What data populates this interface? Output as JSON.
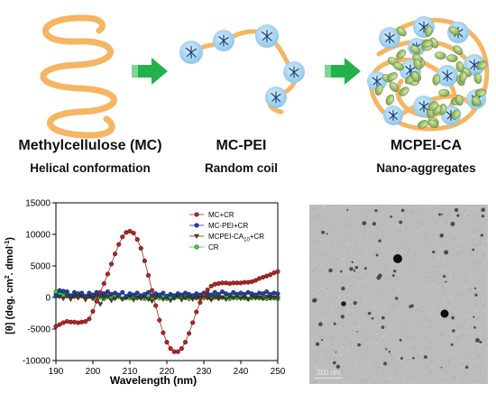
{
  "schematic": {
    "stages": [
      {
        "name": "Methylcellulose (MC)",
        "desc": "Helical conformation"
      },
      {
        "name": "MC-PEI",
        "desc": "Random coil"
      },
      {
        "name": "MCPEI-CA",
        "desc": "Nano-aggregates"
      }
    ],
    "colors": {
      "backbone": "#f5b562",
      "arrow": "#22b14c",
      "pei": "#a9d6f0",
      "ca": "#9bc06a"
    }
  },
  "chart_data": {
    "type": "line",
    "xlabel": "Wavelength (nm)",
    "ylabel_parts": [
      "[θ] (deg. cm",
      "2",
      ". dmol",
      "-1",
      ")"
    ],
    "xlim": [
      190,
      250
    ],
    "ylim": [
      -10000,
      15000
    ],
    "xticks": [
      190,
      200,
      210,
      220,
      230,
      240,
      250
    ],
    "yticks": [
      -10000,
      -5000,
      0,
      5000,
      10000,
      15000
    ],
    "grid": false,
    "legend_position": "top-right",
    "series": [
      {
        "name": "MC+CR",
        "color": "#b22222",
        "marker": "circle",
        "points": [
          [
            190,
            -4600
          ],
          [
            191,
            -4300
          ],
          [
            192,
            -4000
          ],
          [
            193,
            -3800
          ],
          [
            194,
            -3900
          ],
          [
            195,
            -3900
          ],
          [
            196,
            -4000
          ],
          [
            197,
            -3900
          ],
          [
            198,
            -3800
          ],
          [
            199,
            -3400
          ],
          [
            200,
            -2200
          ],
          [
            201,
            -600
          ],
          [
            202,
            800
          ],
          [
            203,
            2200
          ],
          [
            204,
            3700
          ],
          [
            205,
            5300
          ],
          [
            206,
            6900
          ],
          [
            207,
            8400
          ],
          [
            208,
            9600
          ],
          [
            209,
            10300
          ],
          [
            210,
            10500
          ],
          [
            211,
            10200
          ],
          [
            212,
            9200
          ],
          [
            213,
            7800
          ],
          [
            214,
            5800
          ],
          [
            215,
            3500
          ],
          [
            216,
            1100
          ],
          [
            217,
            -1300
          ],
          [
            218,
            -3600
          ],
          [
            219,
            -5600
          ],
          [
            220,
            -7100
          ],
          [
            221,
            -8100
          ],
          [
            222,
            -8600
          ],
          [
            223,
            -8600
          ],
          [
            224,
            -8100
          ],
          [
            225,
            -7100
          ],
          [
            226,
            -5700
          ],
          [
            227,
            -4000
          ],
          [
            228,
            -2300
          ],
          [
            229,
            -800
          ],
          [
            230,
            400
          ],
          [
            231,
            1200
          ],
          [
            232,
            1800
          ],
          [
            233,
            2100
          ],
          [
            234,
            2200
          ],
          [
            235,
            2300
          ],
          [
            236,
            2300
          ],
          [
            237,
            2200
          ],
          [
            238,
            2300
          ],
          [
            239,
            2300
          ],
          [
            240,
            2300
          ],
          [
            241,
            2400
          ],
          [
            242,
            2400
          ],
          [
            243,
            2500
          ],
          [
            244,
            2700
          ],
          [
            245,
            3000
          ],
          [
            246,
            3200
          ],
          [
            247,
            3400
          ],
          [
            248,
            3600
          ],
          [
            249,
            3900
          ],
          [
            250,
            4100
          ]
        ]
      },
      {
        "name": "MC-PEI+CR",
        "color": "#1f3fa5",
        "marker": "circle",
        "points": [
          [
            190,
            200
          ],
          [
            191,
            1100
          ],
          [
            192,
            1000
          ],
          [
            193,
            900
          ],
          [
            194,
            300
          ],
          [
            195,
            800
          ],
          [
            196,
            600
          ],
          [
            197,
            700
          ],
          [
            198,
            200
          ],
          [
            199,
            700
          ],
          [
            200,
            400
          ],
          [
            201,
            800
          ],
          [
            202,
            300
          ],
          [
            203,
            600
          ],
          [
            204,
            900
          ],
          [
            205,
            500
          ],
          [
            206,
            700
          ],
          [
            207,
            400
          ],
          [
            208,
            800
          ],
          [
            209,
            200
          ],
          [
            210,
            600
          ],
          [
            211,
            400
          ],
          [
            212,
            700
          ],
          [
            213,
            300
          ],
          [
            214,
            500
          ],
          [
            215,
            800
          ],
          [
            216,
            300
          ],
          [
            217,
            600
          ],
          [
            218,
            400
          ],
          [
            219,
            700
          ],
          [
            220,
            200
          ],
          [
            221,
            500
          ],
          [
            222,
            300
          ],
          [
            223,
            600
          ],
          [
            224,
            400
          ],
          [
            225,
            700
          ],
          [
            226,
            500
          ],
          [
            227,
            300
          ],
          [
            228,
            600
          ],
          [
            229,
            400
          ],
          [
            230,
            700
          ],
          [
            231,
            600
          ],
          [
            232,
            400
          ],
          [
            233,
            800
          ],
          [
            234,
            500
          ],
          [
            235,
            900
          ],
          [
            236,
            600
          ],
          [
            237,
            400
          ],
          [
            238,
            800
          ],
          [
            239,
            500
          ],
          [
            240,
            700
          ],
          [
            241,
            500
          ],
          [
            242,
            800
          ],
          [
            243,
            600
          ],
          [
            244,
            400
          ],
          [
            245,
            700
          ],
          [
            246,
            600
          ],
          [
            247,
            900
          ],
          [
            248,
            500
          ],
          [
            249,
            700
          ],
          [
            250,
            600
          ]
        ]
      },
      {
        "name": "MCPEI-CA10+CR",
        "color": "#5a3a1a",
        "marker": "triangle-down",
        "points": [
          [
            190,
            300
          ],
          [
            191,
            100
          ],
          [
            192,
            -200
          ],
          [
            193,
            200
          ],
          [
            194,
            -300
          ],
          [
            195,
            100
          ],
          [
            196,
            -100
          ],
          [
            197,
            200
          ],
          [
            198,
            -400
          ],
          [
            199,
            100
          ],
          [
            200,
            -200
          ],
          [
            201,
            300
          ],
          [
            202,
            -1100
          ],
          [
            203,
            0
          ],
          [
            204,
            200
          ],
          [
            205,
            -500
          ],
          [
            206,
            -200
          ],
          [
            207,
            300
          ],
          [
            208,
            -300
          ],
          [
            209,
            -100
          ],
          [
            210,
            200
          ],
          [
            211,
            -400
          ],
          [
            212,
            0
          ],
          [
            213,
            -200
          ],
          [
            214,
            100
          ],
          [
            215,
            -300
          ],
          [
            216,
            -600
          ],
          [
            217,
            -100
          ],
          [
            218,
            200
          ],
          [
            219,
            -300
          ],
          [
            220,
            0
          ],
          [
            221,
            -500
          ],
          [
            222,
            -100
          ],
          [
            223,
            200
          ],
          [
            224,
            -400
          ],
          [
            225,
            -100
          ],
          [
            226,
            100
          ],
          [
            227,
            -300
          ],
          [
            228,
            0
          ],
          [
            229,
            -200
          ],
          [
            230,
            200
          ],
          [
            231,
            -100
          ],
          [
            232,
            -400
          ],
          [
            233,
            100
          ],
          [
            234,
            -200
          ],
          [
            235,
            0
          ],
          [
            236,
            -300
          ],
          [
            237,
            100
          ],
          [
            238,
            -100
          ],
          [
            239,
            200
          ],
          [
            240,
            -200
          ],
          [
            241,
            0
          ],
          [
            242,
            -300
          ],
          [
            243,
            100
          ],
          [
            244,
            -100
          ],
          [
            245,
            0
          ],
          [
            246,
            -200
          ],
          [
            247,
            100
          ],
          [
            248,
            -100
          ],
          [
            249,
            0
          ],
          [
            250,
            -100
          ]
        ]
      },
      {
        "name": "CR",
        "color": "#32cd32",
        "marker": "circle",
        "points": [
          [
            190,
            900
          ],
          [
            191,
            700
          ],
          [
            192,
            400
          ],
          [
            193,
            500
          ],
          [
            194,
            200
          ],
          [
            195,
            300
          ],
          [
            196,
            100
          ],
          [
            197,
            300
          ],
          [
            198,
            0
          ],
          [
            199,
            200
          ],
          [
            200,
            -100
          ],
          [
            201,
            100
          ],
          [
            202,
            0
          ],
          [
            203,
            -200
          ],
          [
            204,
            100
          ],
          [
            205,
            -100
          ],
          [
            206,
            0
          ],
          [
            207,
            100
          ],
          [
            208,
            -200
          ],
          [
            209,
            0
          ],
          [
            210,
            -100
          ],
          [
            211,
            100
          ],
          [
            212,
            -100
          ],
          [
            213,
            0
          ],
          [
            214,
            -200
          ],
          [
            215,
            0
          ],
          [
            216,
            -100
          ],
          [
            217,
            100
          ],
          [
            218,
            -100
          ],
          [
            219,
            0
          ],
          [
            220,
            -200
          ],
          [
            221,
            0
          ],
          [
            222,
            -100
          ],
          [
            223,
            100
          ],
          [
            224,
            -100
          ],
          [
            225,
            0
          ],
          [
            226,
            -200
          ],
          [
            227,
            0
          ],
          [
            228,
            -100
          ],
          [
            229,
            0
          ],
          [
            230,
            -100
          ],
          [
            231,
            0
          ],
          [
            232,
            -200
          ],
          [
            233,
            0
          ],
          [
            234,
            -100
          ],
          [
            235,
            0
          ],
          [
            236,
            -100
          ],
          [
            237,
            -200
          ],
          [
            238,
            0
          ],
          [
            239,
            -100
          ],
          [
            240,
            0
          ],
          [
            241,
            -100
          ],
          [
            242,
            -200
          ],
          [
            243,
            -100
          ],
          [
            244,
            0
          ],
          [
            245,
            -100
          ],
          [
            246,
            -100
          ],
          [
            247,
            -200
          ],
          [
            248,
            -100
          ],
          [
            249,
            -100
          ],
          [
            250,
            -200
          ]
        ]
      }
    ]
  },
  "tem": {
    "scale_label": "200 nm"
  }
}
